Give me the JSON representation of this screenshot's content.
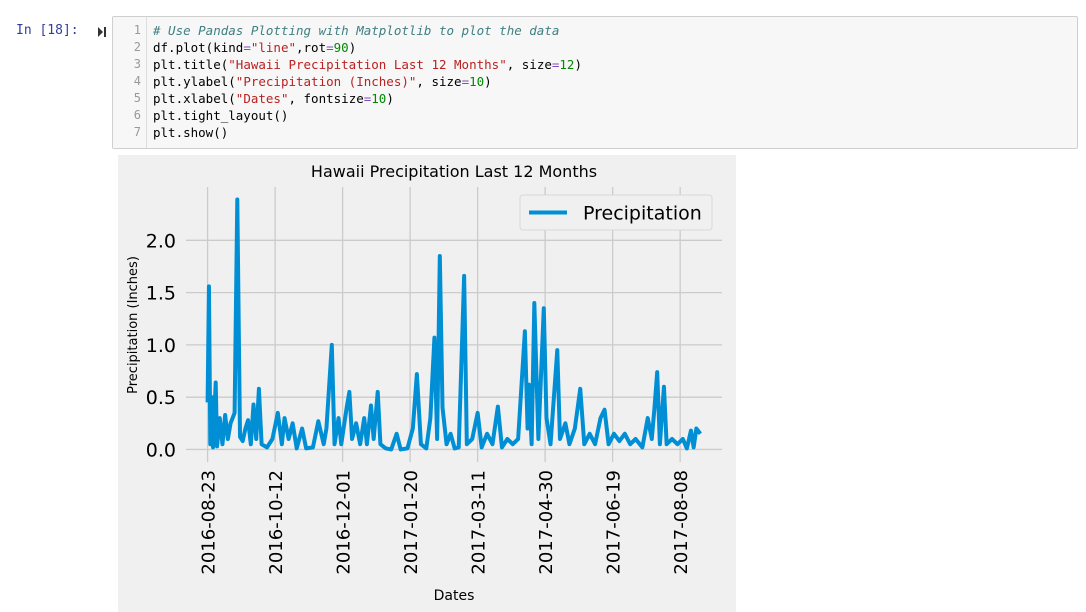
{
  "cell": {
    "prompt": "In [18]:",
    "lines": [
      {
        "number": "1",
        "tokens": [
          {
            "text": "# Use Pandas Plotting with Matplotlib to plot the data",
            "color": "#408080",
            "italic": true
          }
        ]
      },
      {
        "number": "2",
        "tokens": [
          {
            "text": "df.plot(kind",
            "color": "#000000"
          },
          {
            "text": "=",
            "color": "#7c4dba"
          },
          {
            "text": "\"line\"",
            "color": "#ba2121"
          },
          {
            "text": ",rot",
            "color": "#000000"
          },
          {
            "text": "=",
            "color": "#7c4dba"
          },
          {
            "text": "90",
            "color": "#008800"
          },
          {
            "text": ")",
            "color": "#000000"
          }
        ]
      },
      {
        "number": "3",
        "tokens": [
          {
            "text": "plt.title(",
            "color": "#000000"
          },
          {
            "text": "\"Hawaii Precipitation Last 12 Months\"",
            "color": "#ba2121"
          },
          {
            "text": ", size",
            "color": "#000000"
          },
          {
            "text": "=",
            "color": "#7c4dba"
          },
          {
            "text": "12",
            "color": "#008800"
          },
          {
            "text": ")",
            "color": "#000000"
          }
        ]
      },
      {
        "number": "4",
        "tokens": [
          {
            "text": "plt.ylabel(",
            "color": "#000000"
          },
          {
            "text": "\"Precipitation (Inches)\"",
            "color": "#ba2121"
          },
          {
            "text": ", size",
            "color": "#000000"
          },
          {
            "text": "=",
            "color": "#7c4dba"
          },
          {
            "text": "10",
            "color": "#008800"
          },
          {
            "text": ")",
            "color": "#000000"
          }
        ]
      },
      {
        "number": "5",
        "tokens": [
          {
            "text": "plt.xlabel(",
            "color": "#000000"
          },
          {
            "text": "\"Dates\"",
            "color": "#ba2121"
          },
          {
            "text": ", fontsize",
            "color": "#000000"
          },
          {
            "text": "=",
            "color": "#7c4dba"
          },
          {
            "text": "10",
            "color": "#008800"
          },
          {
            "text": ")",
            "color": "#000000"
          }
        ]
      },
      {
        "number": "6",
        "tokens": [
          {
            "text": "plt.tight_layout()",
            "color": "#000000"
          }
        ]
      },
      {
        "number": "7",
        "tokens": [
          {
            "text": "plt.show()",
            "color": "#000000"
          }
        ]
      }
    ]
  },
  "chart_data": {
    "type": "line",
    "title": "Hawaii Precipitation Last 12 Months",
    "xlabel": "Dates",
    "ylabel": "Precipitation (Inches)",
    "x": [
      "2016-08-23",
      "2016-08-24",
      "2016-08-25",
      "2016-08-26",
      "2016-08-27",
      "2016-08-29",
      "2016-08-30",
      "2016-09-01",
      "2016-09-03",
      "2016-09-05",
      "2016-09-07",
      "2016-09-09",
      "2016-09-12",
      "2016-09-14",
      "2016-09-16",
      "2016-09-18",
      "2016-09-20",
      "2016-09-22",
      "2016-09-24",
      "2016-09-26",
      "2016-09-28",
      "2016-09-30",
      "2016-10-02",
      "2016-10-06",
      "2016-10-10",
      "2016-10-14",
      "2016-10-17",
      "2016-10-19",
      "2016-10-22",
      "2016-10-25",
      "2016-10-28",
      "2016-11-01",
      "2016-11-04",
      "2016-11-09",
      "2016-11-13",
      "2016-11-17",
      "2016-11-19",
      "2016-11-23",
      "2016-11-25",
      "2016-11-28",
      "2016-11-30",
      "2016-12-04",
      "2016-12-06",
      "2016-12-08",
      "2016-12-11",
      "2016-12-14",
      "2016-12-17",
      "2016-12-19",
      "2016-12-22",
      "2016-12-24",
      "2016-12-27",
      "2016-12-29",
      "2017-01-02",
      "2017-01-06",
      "2017-01-10",
      "2017-01-13",
      "2017-01-18",
      "2017-01-22",
      "2017-01-25",
      "2017-01-28",
      "2017-02-01",
      "2017-02-04",
      "2017-02-07",
      "2017-02-09",
      "2017-02-11",
      "2017-02-13",
      "2017-02-16",
      "2017-02-19",
      "2017-02-22",
      "2017-02-25",
      "2017-03-01",
      "2017-03-03",
      "2017-03-07",
      "2017-03-11",
      "2017-03-14",
      "2017-03-18",
      "2017-03-22",
      "2017-03-26",
      "2017-03-29",
      "2017-04-02",
      "2017-04-06",
      "2017-04-10",
      "2017-04-15",
      "2017-04-17",
      "2017-04-18",
      "2017-04-20",
      "2017-04-22",
      "2017-04-25",
      "2017-04-29",
      "2017-05-01",
      "2017-05-04",
      "2017-05-09",
      "2017-05-11",
      "2017-05-15",
      "2017-05-18",
      "2017-05-22",
      "2017-05-26",
      "2017-05-29",
      "2017-06-02",
      "2017-06-06",
      "2017-06-10",
      "2017-06-13",
      "2017-06-16",
      "2017-06-20",
      "2017-06-24",
      "2017-06-28",
      "2017-07-02",
      "2017-07-06",
      "2017-07-11",
      "2017-07-15",
      "2017-07-18",
      "2017-07-20",
      "2017-07-22",
      "2017-07-24",
      "2017-07-27",
      "2017-07-29",
      "2017-08-02",
      "2017-08-06",
      "2017-08-10",
      "2017-08-13",
      "2017-08-16",
      "2017-08-18",
      "2017-08-20",
      "2017-08-23"
    ],
    "series": [
      {
        "name": "Precipitation",
        "color": "#008fd5",
        "values": [
          0.45,
          1.56,
          0.05,
          0.5,
          0.02,
          0.64,
          0.03,
          0.3,
          0.05,
          0.33,
          0.1,
          0.25,
          0.35,
          2.39,
          0.12,
          0.08,
          0.2,
          0.28,
          0.05,
          0.43,
          0.1,
          0.58,
          0.05,
          0.02,
          0.1,
          0.35,
          0.05,
          0.3,
          0.1,
          0.25,
          0.01,
          0.2,
          0.01,
          0.02,
          0.27,
          0.05,
          0.2,
          1.0,
          0.05,
          0.3,
          0.05,
          0.4,
          0.55,
          0.1,
          0.25,
          0.05,
          0.3,
          0.05,
          0.42,
          0.1,
          0.55,
          0.05,
          0.01,
          0,
          0.15,
          0,
          0.01,
          0.2,
          0.72,
          0.05,
          0.01,
          0.3,
          1.07,
          0.1,
          1.85,
          0.4,
          0.05,
          0.15,
          0.01,
          0.02,
          1.66,
          0.05,
          0.1,
          0.35,
          0.02,
          0.15,
          0.05,
          0.41,
          0.02,
          0.1,
          0.05,
          0.1,
          1.13,
          0.2,
          0.62,
          0.05,
          1.4,
          0.1,
          1.35,
          0.3,
          0.05,
          0.95,
          0.1,
          0.25,
          0.05,
          0.2,
          0.58,
          0.05,
          0.15,
          0.05,
          0.3,
          0.38,
          0.05,
          0.15,
          0.08,
          0.15,
          0.05,
          0.1,
          0.02,
          0.3,
          0.1,
          0.4,
          0.74,
          0.05,
          0.6,
          0.05,
          0.1,
          0.05,
          0.1,
          0.01,
          0.18,
          0.02,
          0.2,
          0.15
        ]
      }
    ],
    "xlim": [
      "2016-08-07",
      "2017-09-08"
    ],
    "xticks": [
      "2016-08-23",
      "2016-10-12",
      "2016-12-01",
      "2017-01-20",
      "2017-03-11",
      "2017-04-30",
      "2017-06-19",
      "2017-08-08"
    ],
    "ylim": [
      -0.12,
      2.51
    ],
    "yticks": [
      {
        "value": 0,
        "label": "0.0"
      },
      0.5,
      {
        "value": 1,
        "label": "1.0"
      },
      1.5,
      {
        "value": 2,
        "label": "2.0"
      }
    ],
    "grid": true,
    "legend": "upper right"
  }
}
